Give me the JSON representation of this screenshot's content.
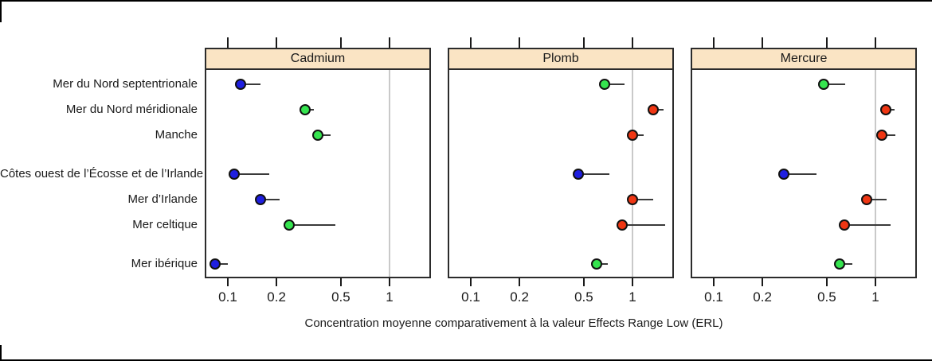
{
  "chart_data": {
    "type": "scatter",
    "subtype": "dot-interval-trellis",
    "x_scale": "log10",
    "x_ticks": [
      0.1,
      0.2,
      0.5,
      1
    ],
    "x_tick_labels": [
      "0.1",
      "0.2",
      "0.5",
      "1"
    ],
    "x_domain": [
      0.072,
      1.82
    ],
    "reference_line_x": 1,
    "grid": "reference-line-only",
    "legend": "none",
    "xlabel": "Concentration moyenne  comparativement à la valeur Effects Range Low (ERL)",
    "categories": [
      "Mer du Nord septentrionale",
      "Mer du Nord méridionale",
      "Manche",
      "Côtes ouest de l’Écosse et de l’Irlande",
      "Mer d’Irlande",
      "Mer celtique",
      "Mer ibérique"
    ],
    "category_group_breaks_after": [
      2,
      5
    ],
    "colors": {
      "blue": "#1e1ee0",
      "green": "#35e44f",
      "red": "#ef3613",
      "strip_fill": "#fae4c4",
      "reference_line": "#c9c9c9",
      "interval_line": "#3a3a3a",
      "border": "#2b2b2b"
    },
    "panels": [
      {
        "label": "Cadmium",
        "points": [
          {
            "category": "Mer du Nord septentrionale",
            "value": 0.12,
            "upper": 0.16,
            "color": "blue"
          },
          {
            "category": "Mer du Nord méridionale",
            "value": 0.3,
            "upper": 0.34,
            "color": "green"
          },
          {
            "category": "Manche",
            "value": 0.36,
            "upper": 0.43,
            "color": "green"
          },
          {
            "category": "Côtes ouest de l’Écosse et de l’Irlande",
            "value": 0.11,
            "upper": 0.18,
            "color": "blue"
          },
          {
            "category": "Mer d’Irlande",
            "value": 0.16,
            "upper": 0.21,
            "color": "blue"
          },
          {
            "category": "Mer celtique",
            "value": 0.24,
            "upper": 0.46,
            "color": "green"
          },
          {
            "category": "Mer ibérique",
            "value": 0.083,
            "upper": 0.1,
            "color": "blue"
          }
        ]
      },
      {
        "label": "Plomb",
        "points": [
          {
            "category": "Mer du Nord septentrionale",
            "value": 0.67,
            "upper": 0.89,
            "color": "green"
          },
          {
            "category": "Mer du Nord méridionale",
            "value": 1.35,
            "upper": 1.56,
            "color": "red"
          },
          {
            "category": "Manche",
            "value": 1.0,
            "upper": 1.17,
            "color": "red"
          },
          {
            "category": "Côtes ouest de l’Écosse et de l’Irlande",
            "value": 0.46,
            "upper": 0.72,
            "color": "blue"
          },
          {
            "category": "Mer d’Irlande",
            "value": 1.0,
            "upper": 1.34,
            "color": "red"
          },
          {
            "category": "Mer celtique",
            "value": 0.86,
            "upper": 1.6,
            "color": "red"
          },
          {
            "category": "Mer ibérique",
            "value": 0.6,
            "upper": 0.7,
            "color": "green"
          }
        ]
      },
      {
        "label": "Mercure",
        "points": [
          {
            "category": "Mer du Nord septentrionale",
            "value": 0.48,
            "upper": 0.65,
            "color": "green"
          },
          {
            "category": "Mer du Nord méridionale",
            "value": 1.16,
            "upper": 1.31,
            "color": "red"
          },
          {
            "category": "Manche",
            "value": 1.1,
            "upper": 1.33,
            "color": "red"
          },
          {
            "category": "Côtes ouest de l’Écosse et de l’Irlande",
            "value": 0.27,
            "upper": 0.43,
            "color": "blue"
          },
          {
            "category": "Mer d’Irlande",
            "value": 0.88,
            "upper": 1.17,
            "color": "red"
          },
          {
            "category": "Mer celtique",
            "value": 0.64,
            "upper": 1.24,
            "color": "red"
          },
          {
            "category": "Mer ibérique",
            "value": 0.6,
            "upper": 0.72,
            "color": "green"
          }
        ]
      }
    ]
  }
}
